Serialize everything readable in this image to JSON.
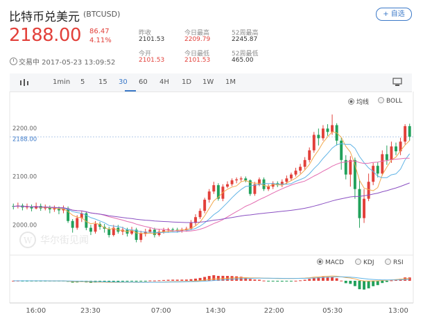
{
  "header": {
    "title": "比特币兑美元",
    "ticker": "(BTCUSD)",
    "add_button": "+ 自选",
    "price": "2188.00",
    "change": "86.47",
    "change_pct": "4.11%"
  },
  "stats": [
    {
      "label": "昨收",
      "value": "2101.53",
      "highlight": false
    },
    {
      "label": "今日最高",
      "value": "2209.79",
      "highlight": true
    },
    {
      "label": "52周最高",
      "value": "2245.87",
      "highlight": false
    },
    {
      "label": "今开",
      "value": "2101.53",
      "highlight": true
    },
    {
      "label": "今日最低",
      "value": "2101.53",
      "highlight": true
    },
    {
      "label": "52周最低",
      "value": "465.00",
      "highlight": false
    }
  ],
  "status": "交易中 2017-05-23 13:09:52",
  "toolbar": {
    "intervals": [
      "1min",
      "5",
      "15",
      "30",
      "60",
      "4H",
      "1D",
      "1W",
      "1M"
    ],
    "active": "30"
  },
  "chart": {
    "overlay_options": [
      "均线",
      "BOLL"
    ],
    "overlay_selected": "均线",
    "y_labels": [
      "2200.00",
      "2188.00",
      "2100.00",
      "2000.00"
    ],
    "x_labels": [
      "16:00",
      "23:30",
      "07:00",
      "14:30",
      "22:00",
      "05:30",
      "13:00"
    ],
    "indicator_options": [
      "MACD",
      "KDJ",
      "RSI"
    ],
    "indicator_selected": "MACD",
    "watermark": "华尔街见闻"
  },
  "colors": {
    "up": "#e2403a",
    "down": "#22a15b",
    "accent": "#3b79c8"
  },
  "chart_data": {
    "type": "candlestick",
    "ylim": [
      1955,
      2260
    ],
    "candles": [
      [
        2045,
        2044,
        2050,
        2038
      ],
      [
        2044,
        2046,
        2052,
        2040
      ],
      [
        2046,
        2042,
        2050,
        2036
      ],
      [
        2042,
        2044,
        2050,
        2038
      ],
      [
        2044,
        2040,
        2048,
        2034
      ],
      [
        2040,
        2045,
        2052,
        2038
      ],
      [
        2045,
        2040,
        2050,
        2035
      ],
      [
        2040,
        2042,
        2048,
        2036
      ],
      [
        2042,
        2038,
        2046,
        2030
      ],
      [
        2038,
        2040,
        2046,
        2033
      ],
      [
        2040,
        2036,
        2044,
        2028
      ],
      [
        2036,
        2040,
        2046,
        2030
      ],
      [
        2040,
        2014,
        2044,
        2010
      ],
      [
        2014,
        2000,
        2018,
        1990
      ],
      [
        2000,
        2020,
        2026,
        1996
      ],
      [
        2020,
        2030,
        2034,
        2012
      ],
      [
        2030,
        2000,
        2034,
        1995
      ],
      [
        2000,
        1992,
        2006,
        1985
      ],
      [
        1992,
        2008,
        2014,
        1988
      ],
      [
        2008,
        2002,
        2012,
        1996
      ],
      [
        2002,
        1998,
        2008,
        1990
      ],
      [
        1998,
        1985,
        2002,
        1980
      ],
      [
        1985,
        2000,
        2006,
        1982
      ],
      [
        2000,
        1992,
        2006,
        1988
      ],
      [
        1992,
        1996,
        2002,
        1985
      ],
      [
        1996,
        1988,
        2000,
        1982
      ],
      [
        1988,
        1996,
        2002,
        1985
      ],
      [
        1996,
        1975,
        2000,
        1970
      ],
      [
        1975,
        1988,
        1994,
        1970
      ],
      [
        1988,
        1992,
        1998,
        1982
      ],
      [
        1992,
        1996,
        2000,
        1988
      ],
      [
        1996,
        1985,
        2000,
        1980
      ],
      [
        1985,
        1992,
        1998,
        1982
      ],
      [
        1992,
        1995,
        2000,
        1988
      ],
      [
        1995,
        1997,
        2000,
        1990
      ],
      [
        1997,
        1996,
        2000,
        1992
      ],
      [
        1996,
        1994,
        2000,
        1990
      ],
      [
        1994,
        1996,
        2000,
        1990
      ],
      [
        1996,
        1998,
        2002,
        1992
      ],
      [
        1998,
        2010,
        2016,
        1995
      ],
      [
        2010,
        2022,
        2028,
        2005
      ],
      [
        2022,
        2035,
        2040,
        2018
      ],
      [
        2035,
        2058,
        2062,
        2030
      ],
      [
        2058,
        2075,
        2080,
        2052
      ],
      [
        2075,
        2088,
        2095,
        2070
      ],
      [
        2088,
        2060,
        2092,
        2056
      ],
      [
        2060,
        2085,
        2090,
        2055
      ],
      [
        2085,
        2090,
        2096,
        2082
      ],
      [
        2090,
        2098,
        2102,
        2086
      ],
      [
        2098,
        2100,
        2104,
        2092
      ],
      [
        2100,
        2102,
        2106,
        2096
      ],
      [
        2102,
        2098,
        2106,
        2094
      ],
      [
        2098,
        2070,
        2100,
        2066
      ],
      [
        2070,
        2090,
        2095,
        2066
      ],
      [
        2090,
        2100,
        2104,
        2086
      ],
      [
        2100,
        2080,
        2104,
        2076
      ],
      [
        2080,
        2085,
        2090,
        2076
      ],
      [
        2085,
        2092,
        2096,
        2080
      ],
      [
        2092,
        2088,
        2096,
        2084
      ],
      [
        2088,
        2095,
        2100,
        2084
      ],
      [
        2095,
        2102,
        2108,
        2090
      ],
      [
        2102,
        2110,
        2114,
        2098
      ],
      [
        2110,
        2118,
        2124,
        2106
      ],
      [
        2118,
        2126,
        2132,
        2112
      ],
      [
        2126,
        2140,
        2146,
        2120
      ],
      [
        2140,
        2160,
        2166,
        2135
      ],
      [
        2160,
        2192,
        2198,
        2155
      ],
      [
        2192,
        2185,
        2205,
        2170
      ],
      [
        2185,
        2205,
        2212,
        2180
      ],
      [
        2205,
        2198,
        2214,
        2190
      ],
      [
        2198,
        2212,
        2234,
        2192
      ],
      [
        2212,
        2180,
        2216,
        2170
      ],
      [
        2180,
        2140,
        2186,
        2120
      ],
      [
        2140,
        2110,
        2150,
        2100
      ],
      [
        2110,
        2140,
        2148,
        2085
      ],
      [
        2140,
        2080,
        2145,
        2060
      ],
      [
        2080,
        2020,
        2100,
        2000
      ],
      [
        2020,
        2060,
        2080,
        2010
      ],
      [
        2060,
        2095,
        2112,
        2055
      ],
      [
        2095,
        2128,
        2134,
        2088
      ],
      [
        2128,
        2112,
        2136,
        2104
      ],
      [
        2112,
        2152,
        2160,
        2108
      ],
      [
        2152,
        2140,
        2170,
        2130
      ],
      [
        2140,
        2168,
        2178,
        2134
      ],
      [
        2168,
        2158,
        2176,
        2150
      ],
      [
        2158,
        2178,
        2186,
        2150
      ],
      [
        2178,
        2210,
        2214,
        2172
      ],
      [
        2210,
        2188,
        2215,
        2180
      ]
    ]
  }
}
